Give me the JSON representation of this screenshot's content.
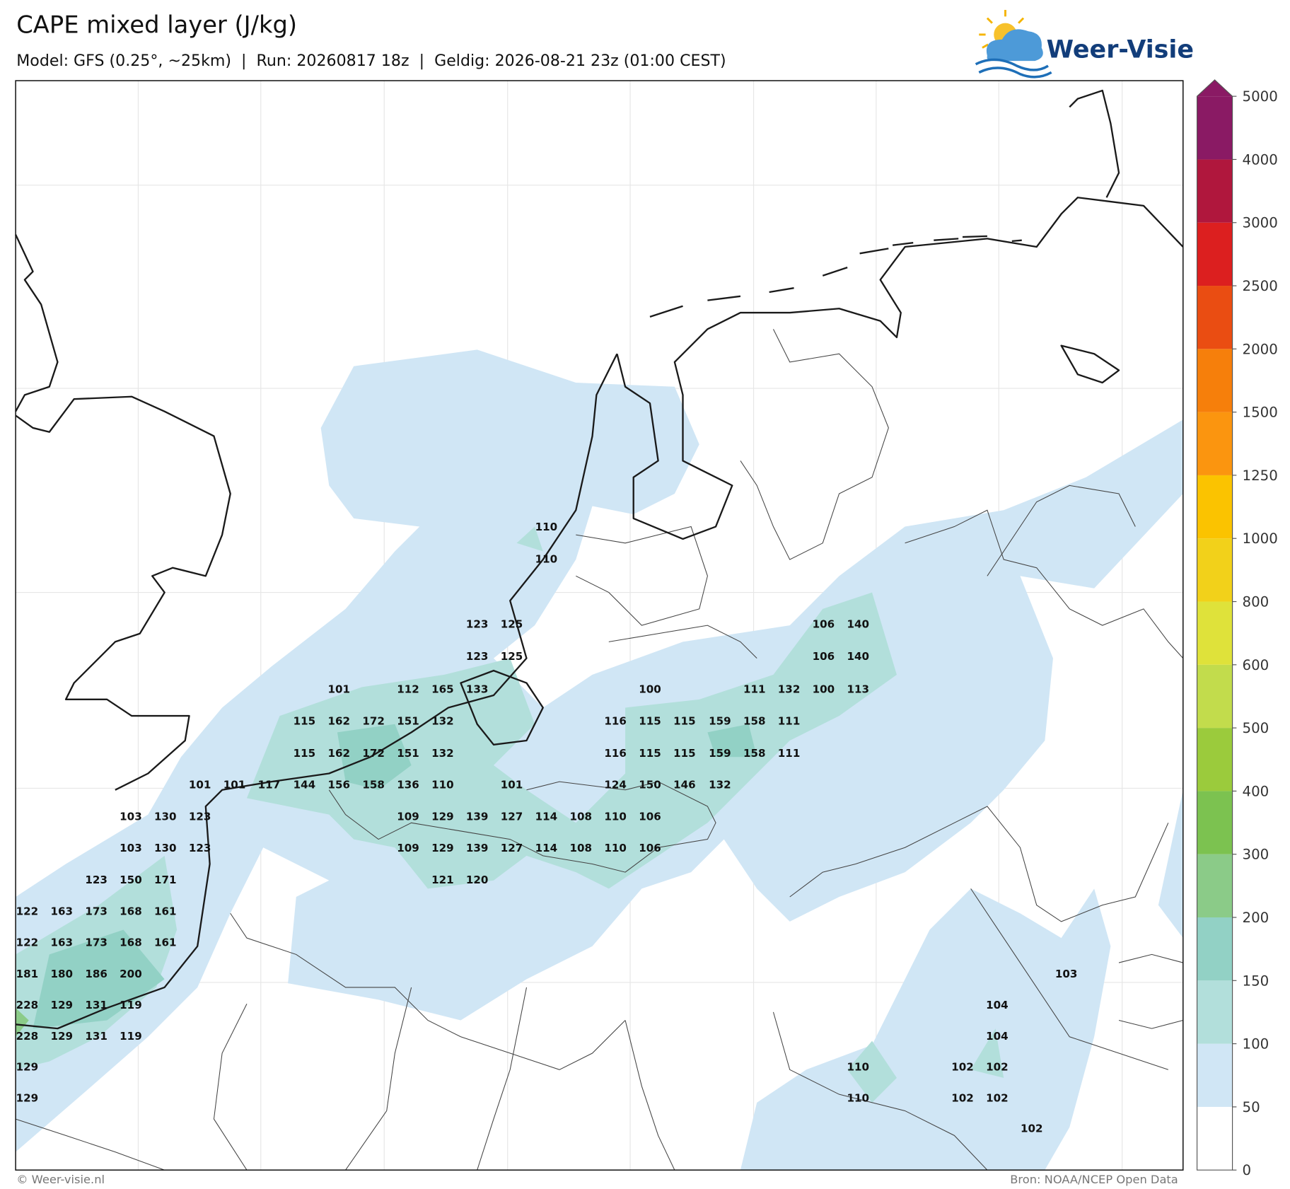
{
  "header": {
    "title": "CAPE mixed layer (J/kg)",
    "subtitle": "Model: GFS (0.25°, ~25km)  |  Run: 20260817 18z  |  Geldig: 2026-08-21 23z (01:00 CEST)"
  },
  "logo": {
    "text": "Weer-Visie"
  },
  "colorbar": {
    "levels": [
      0,
      50,
      100,
      150,
      200,
      300,
      400,
      500,
      600,
      800,
      1000,
      1250,
      1500,
      2000,
      2500,
      3000,
      4000,
      5000
    ],
    "colors": [
      "#ffffff",
      "#d0e6f5",
      "#b2dfdb",
      "#92d1c5",
      "#8bcb88",
      "#7cc250",
      "#9bcb3c",
      "#c2dc4c",
      "#dfe23a",
      "#f2d11a",
      "#fbc300",
      "#fb950f",
      "#f67f0b",
      "#ea4d12",
      "#dc1f1f",
      "#b0173d",
      "#8a1a64"
    ],
    "extend_color": "#8a1a64"
  },
  "map": {
    "values": [
      110,
      110,
      123,
      125,
      106,
      140,
      123,
      125,
      106,
      140,
      101,
      112,
      165,
      133,
      100,
      111,
      132,
      100,
      113,
      115,
      162,
      172,
      151,
      132,
      116,
      115,
      115,
      159,
      158,
      111,
      115,
      162,
      172,
      151,
      132,
      116,
      115,
      115,
      159,
      158,
      111,
      101,
      101,
      117,
      144,
      156,
      158,
      136,
      110,
      101,
      124,
      150,
      146,
      132,
      103,
      130,
      123,
      109,
      129,
      139,
      127,
      114,
      108,
      110,
      106,
      103,
      130,
      123,
      109,
      129,
      139,
      127,
      114,
      108,
      110,
      106,
      123,
      150,
      171,
      121,
      120,
      122,
      163,
      173,
      168,
      161,
      122,
      163,
      173,
      168,
      161,
      181,
      180,
      186,
      200,
      103,
      228,
      129,
      131,
      119,
      104,
      228,
      129,
      131,
      119,
      104,
      129,
      110,
      102,
      102,
      129,
      110,
      102,
      102,
      102
    ]
  },
  "footer": {
    "left": "© Weer-visie.nl",
    "right": "Bron: NOAA/NCEP Open Data"
  }
}
